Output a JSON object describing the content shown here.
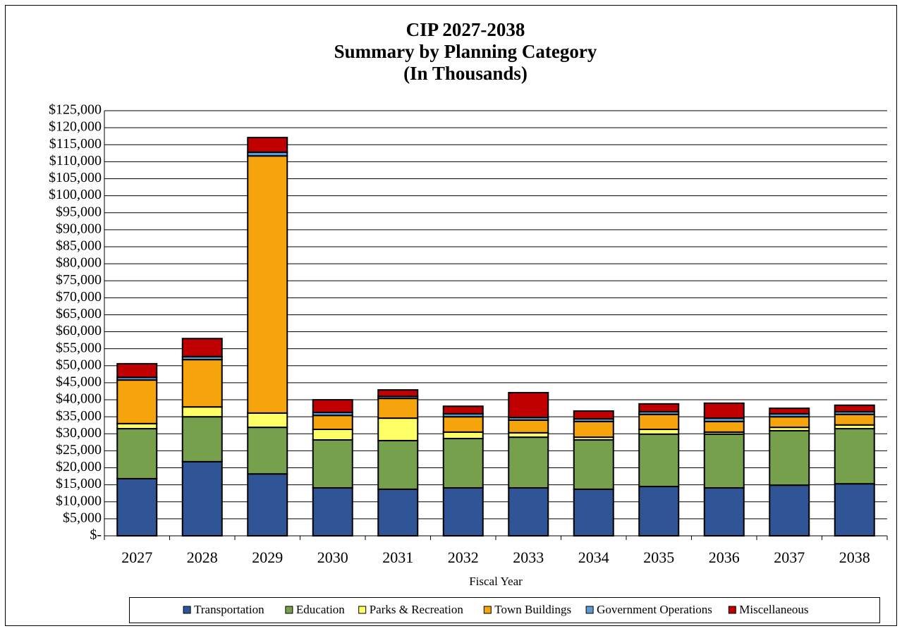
{
  "chart_data": {
    "type": "stacked_bar",
    "title": [
      "CIP 2027-2038",
      "Summary by Planning Category",
      "(In Thousands)"
    ],
    "x_label": "Fiscal Year",
    "categories": [
      "2027",
      "2028",
      "2029",
      "2030",
      "2031",
      "2032",
      "2033",
      "2034",
      "2035",
      "2036",
      "2037",
      "2038"
    ],
    "series": [
      {
        "name": "Transportation",
        "color": "#2f5597",
        "values": [
          16800,
          21800,
          18200,
          14100,
          13700,
          14100,
          14100,
          13700,
          14500,
          14100,
          14900,
          15300
        ]
      },
      {
        "name": "Education",
        "color": "#77a04c",
        "values": [
          14700,
          13200,
          13700,
          14100,
          14300,
          14500,
          14900,
          14500,
          15400,
          15800,
          16000,
          16200
        ]
      },
      {
        "name": "Parks & Recreation",
        "color": "#ffff66",
        "values": [
          1500,
          2900,
          4200,
          3100,
          6600,
          1900,
          1300,
          800,
          1400,
          600,
          1000,
          1100
        ]
      },
      {
        "name": "Town Buildings",
        "color": "#f5a40b",
        "values": [
          12800,
          13900,
          75600,
          4100,
          5800,
          4500,
          3700,
          4600,
          4400,
          3100,
          3100,
          3100
        ]
      },
      {
        "name": "Government Operations",
        "color": "#5b9bd5",
        "values": [
          800,
          900,
          1100,
          900,
          600,
          900,
          800,
          800,
          800,
          1000,
          900,
          800
        ]
      },
      {
        "name": "Miscellaneous",
        "color": "#c00000",
        "values": [
          4000,
          5300,
          4300,
          3700,
          1900,
          2200,
          7300,
          2300,
          2300,
          4400,
          1600,
          1900
        ]
      }
    ],
    "ylim": [
      0,
      125000
    ],
    "yticks": [
      {
        "value": 0,
        "label": "$-"
      },
      {
        "value": 5000,
        "label": "$5,000"
      },
      {
        "value": 10000,
        "label": "$10,000"
      },
      {
        "value": 15000,
        "label": "$15,000"
      },
      {
        "value": 20000,
        "label": "$20,000"
      },
      {
        "value": 25000,
        "label": "$25,000"
      },
      {
        "value": 30000,
        "label": "$30,000"
      },
      {
        "value": 35000,
        "label": "$35,000"
      },
      {
        "value": 40000,
        "label": "$40,000"
      },
      {
        "value": 45000,
        "label": "$45,000"
      },
      {
        "value": 50000,
        "label": "$50,000"
      },
      {
        "value": 55000,
        "label": "$55,000"
      },
      {
        "value": 60000,
        "label": "$60,000"
      },
      {
        "value": 65000,
        "label": "$65,000"
      },
      {
        "value": 70000,
        "label": "$70,000"
      },
      {
        "value": 75000,
        "label": "$75,000"
      },
      {
        "value": 80000,
        "label": "$80,000"
      },
      {
        "value": 85000,
        "label": "$85,000"
      },
      {
        "value": 90000,
        "label": "$90,000"
      },
      {
        "value": 95000,
        "label": "$95,000"
      },
      {
        "value": 100000,
        "label": "$100,000"
      },
      {
        "value": 105000,
        "label": "$105,000"
      },
      {
        "value": 110000,
        "label": "$110,000"
      },
      {
        "value": 115000,
        "label": "$115,000"
      },
      {
        "value": 120000,
        "label": "$120,000"
      },
      {
        "value": 125000,
        "label": "$125,000"
      }
    ],
    "grid": true,
    "legend": "bottom"
  }
}
